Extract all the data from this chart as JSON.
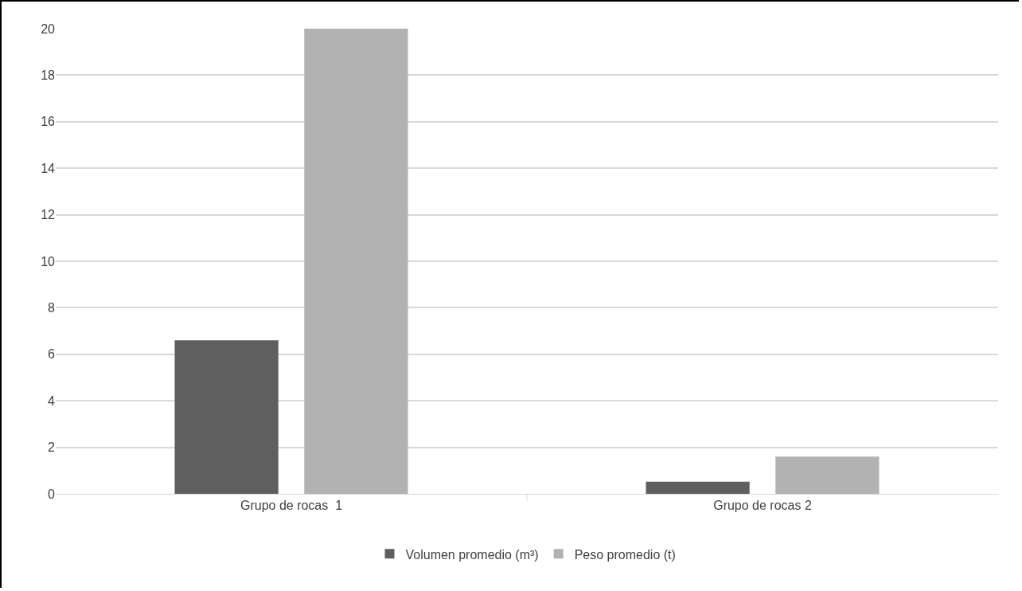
{
  "chart_data": {
    "type": "bar",
    "categories": [
      "Grupo de rocas  1",
      "Grupo de rocas 2"
    ],
    "series": [
      {
        "name": "Volumen promedio (m³)",
        "color": "#5f5f5f",
        "values": [
          6.6,
          0.52
        ]
      },
      {
        "name": "Peso promedio (t)",
        "color": "#b2b2b2",
        "values": [
          20,
          1.6
        ]
      }
    ],
    "ylim": [
      0,
      20
    ],
    "yticks": [
      0,
      2,
      4,
      6,
      8,
      10,
      12,
      14,
      16,
      18,
      20
    ],
    "grid": "y",
    "legend": "bottom"
  }
}
